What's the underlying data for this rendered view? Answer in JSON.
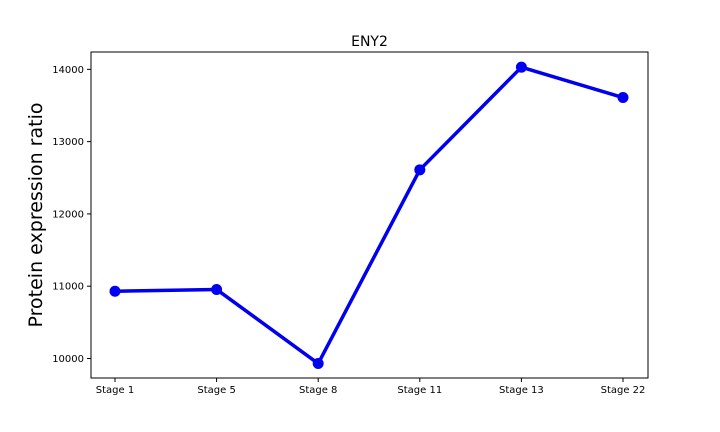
{
  "chart_data": {
    "type": "line",
    "title": "ENY2",
    "xlabel": "",
    "ylabel": "Protein expression ratio",
    "categories": [
      "Stage 1",
      "Stage 5",
      "Stage 8",
      "Stage 11",
      "Stage 13",
      "Stage 22"
    ],
    "series": [
      {
        "values": [
          10930,
          10955,
          9930,
          12610,
          14030,
          13610
        ],
        "color": "#0000ee"
      }
    ],
    "yticks": [
      10000,
      11000,
      12000,
      13000,
      14000
    ],
    "ytick_labels": [
      "10000",
      "11000",
      "12000",
      "13000",
      "14000"
    ],
    "ylim": [
      9730,
      14240
    ],
    "grid": false,
    "legend": "none"
  }
}
